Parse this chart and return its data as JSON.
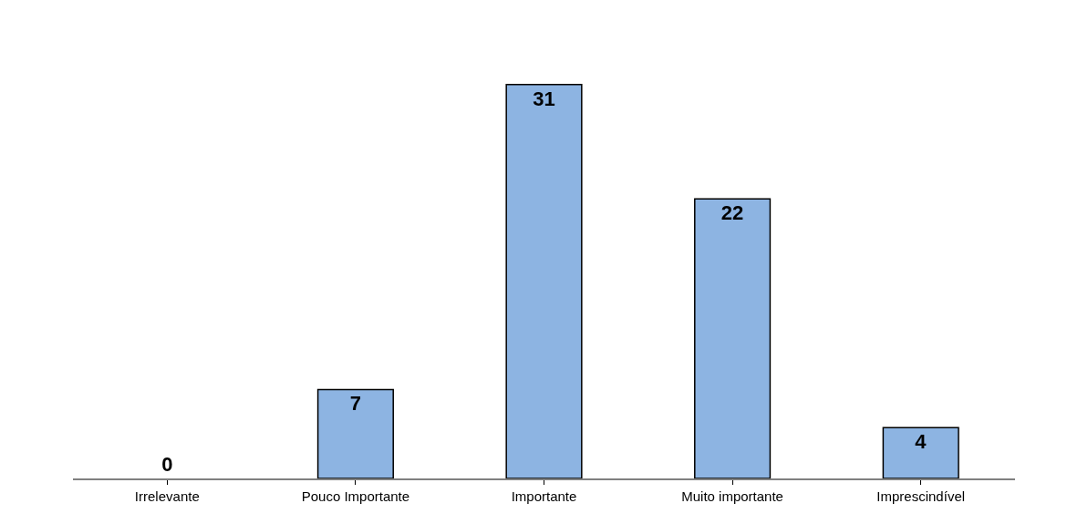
{
  "chart_data": {
    "type": "bar",
    "categories": [
      "Irrelevante",
      "Pouco Importante",
      "Importante",
      "Muito importante",
      "Imprescindível"
    ],
    "values": [
      0,
      7,
      31,
      22,
      4
    ],
    "color": "#8db4e2",
    "data_labels": true
  }
}
